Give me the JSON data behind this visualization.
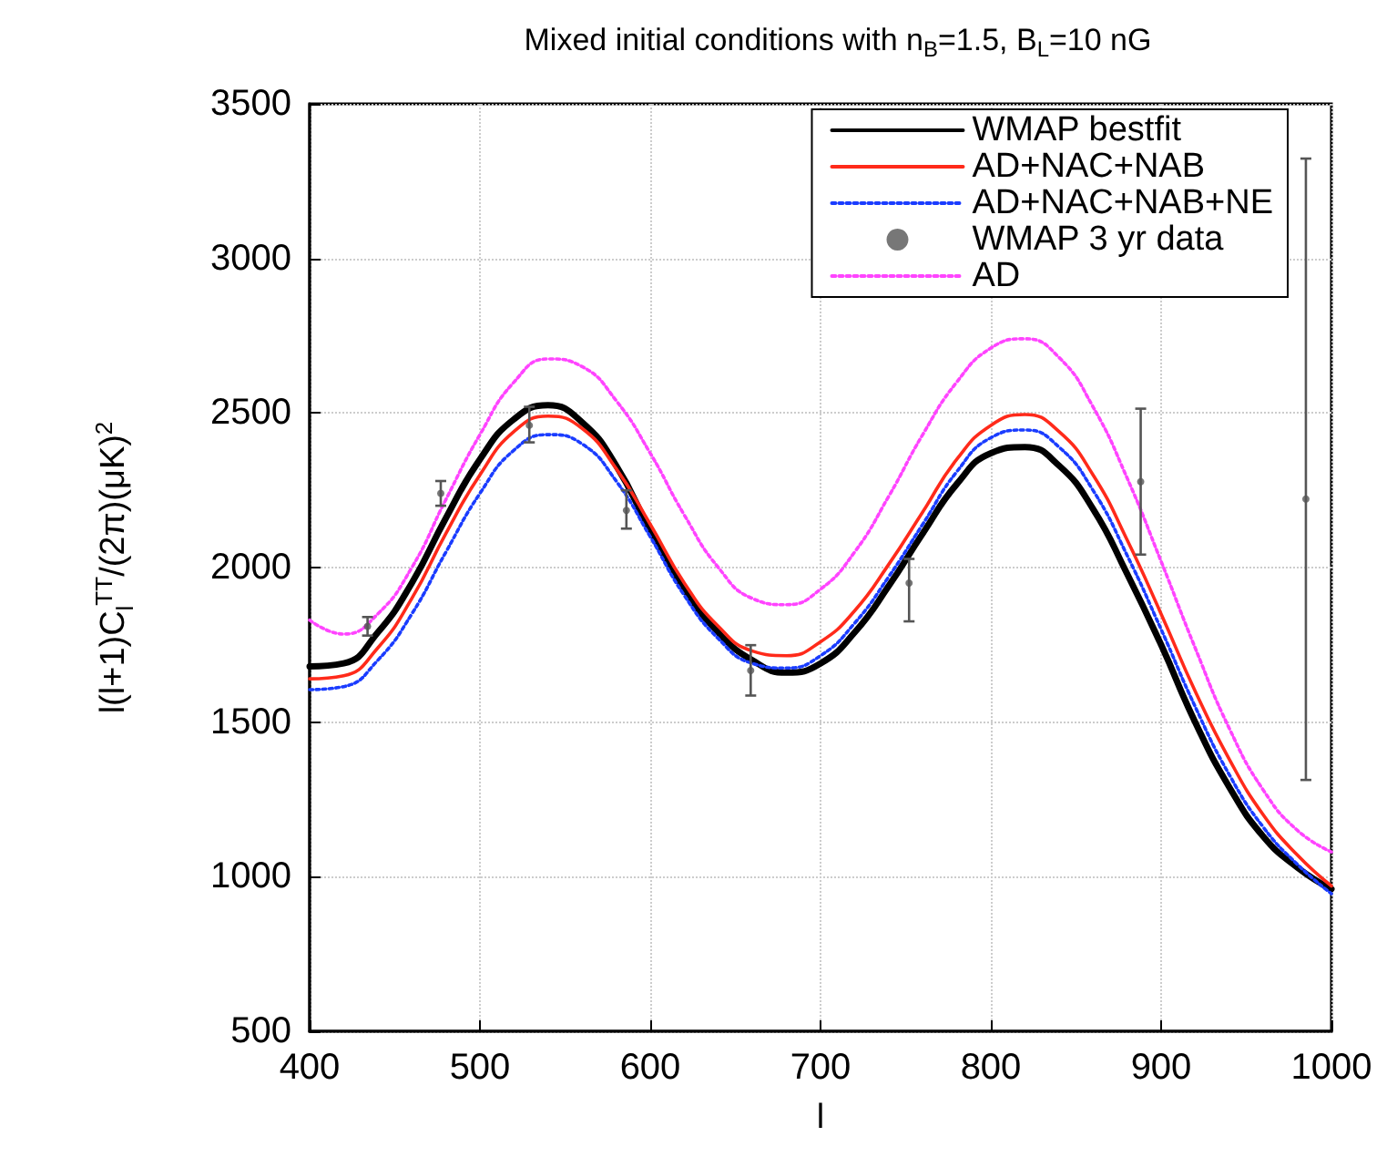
{
  "chart_data": {
    "type": "line",
    "title": "Mixed initial conditions with n$_{B}$=1.5, B$_{L}$=10 nG",
    "xlabel": "l",
    "ylabel": "l(l+1)C$_{l}$$^{TT}$/(2π)(μK)$^{2}$",
    "x": [
      400,
      420,
      440,
      460,
      480,
      500,
      520,
      540,
      560,
      580,
      600,
      620,
      640,
      660,
      680,
      700,
      720,
      740,
      760,
      780,
      800,
      820,
      840,
      860,
      880,
      900,
      920,
      940,
      960,
      980,
      1000
    ],
    "xlim": [
      400,
      1000
    ],
    "xticks": [
      400,
      500,
      600,
      700,
      800,
      900,
      1000
    ],
    "ylim": [
      500,
      3500
    ],
    "yticks": [
      500,
      1000,
      1500,
      2000,
      2500,
      3000,
      3500
    ],
    "grid": true,
    "legend": "top right",
    "series": [
      {
        "name": "WMAP bestfit",
        "color": "#000000",
        "line_style": "solid",
        "values": [
          1680,
          1690,
          1790,
          1950,
          2160,
          2350,
          2480,
          2525,
          2470,
          2330,
          2120,
          1930,
          1790,
          1700,
          1660,
          1690,
          1790,
          1940,
          2110,
          2270,
          2370,
          2390,
          2330,
          2190,
          1980,
          1750,
          1500,
          1290,
          1130,
          1030,
          960
        ]
      },
      {
        "name": "AD+NAC+NAB",
        "color": "#ff2a1a",
        "line_style": "solid",
        "values": [
          1640,
          1650,
          1740,
          1900,
          2110,
          2300,
          2440,
          2490,
          2450,
          2320,
          2140,
          1950,
          1810,
          1730,
          1715,
          1760,
          1860,
          2010,
          2180,
          2350,
          2460,
          2495,
          2440,
          2300,
          2090,
          1850,
          1600,
          1380,
          1200,
          1070,
          970
        ]
      },
      {
        "name": "AD+NAC+NAB+NE",
        "color": "#1a3cff",
        "line_style": "dotted",
        "values": [
          1605,
          1615,
          1700,
          1850,
          2050,
          2240,
          2380,
          2430,
          2400,
          2280,
          2100,
          1910,
          1770,
          1690,
          1675,
          1715,
          1820,
          1970,
          2140,
          2310,
          2420,
          2445,
          2390,
          2250,
          2040,
          1800,
          1550,
          1330,
          1160,
          1040,
          945
        ]
      },
      {
        "name": "WMAP 3 yr data",
        "type": "scatter",
        "marker": "circle",
        "color": "#555555",
        "x": [
          434,
          477,
          529,
          586,
          659,
          752,
          888,
          985
        ],
        "values": [
          1810,
          2240,
          2460,
          2185,
          1667,
          1950,
          2278,
          2222
        ],
        "errors": [
          [
            1780,
            1840
          ],
          [
            2200,
            2280
          ],
          [
            2405,
            2520
          ],
          [
            2126,
            2250
          ],
          [
            1586,
            1749
          ],
          [
            1826,
            2028
          ],
          [
            2042,
            2514
          ],
          [
            1313,
            3323
          ]
        ]
      },
      {
        "name": "AD",
        "color": "#ff44ff",
        "line_style": "dotted",
        "values": [
          1830,
          1785,
          1850,
          2000,
          2220,
          2430,
          2600,
          2675,
          2650,
          2540,
          2370,
          2170,
          2000,
          1900,
          1880,
          1930,
          2050,
          2230,
          2430,
          2600,
          2710,
          2740,
          2680,
          2520,
          2290,
          2020,
          1740,
          1480,
          1280,
          1150,
          1080
        ]
      }
    ]
  }
}
